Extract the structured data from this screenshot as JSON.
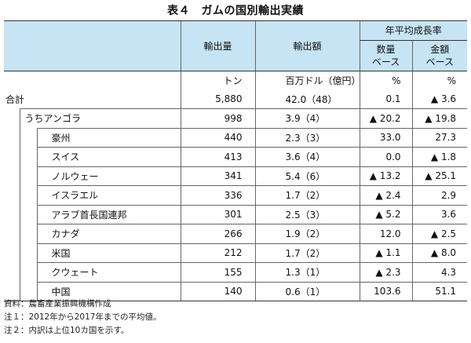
{
  "title": "表４　ガムの国別輸出実績",
  "header": {
    "volume_label": "輸出量",
    "value_label": "輸出額",
    "growth_group_label": "年平均成長率",
    "growth_qty_label": "数量ベース",
    "growth_qty_line1": "数量",
    "growth_qty_line2": "ベース",
    "growth_amt_label": "金額ベース",
    "growth_amt_line1": "金額",
    "growth_amt_line2": "ベース"
  },
  "units": {
    "volume": "トン",
    "value": "百万ドル（億円）",
    "growth_qty": "%",
    "growth_amt": "%"
  },
  "rows": [
    {
      "name": "合計",
      "volume": "5,880",
      "value": "42.0（48）",
      "growth_qty": "0.1",
      "growth_amt": "▲ 3.6"
    },
    {
      "name": "うちアンゴラ",
      "volume": "998",
      "value": "3.9（4）",
      "growth_qty": "▲ 20.2",
      "growth_amt": "▲ 19.8"
    },
    {
      "name": "豪州",
      "volume": "440",
      "value": "2.3（3）",
      "growth_qty": "33.0",
      "growth_amt": "27.3"
    },
    {
      "name": "スイス",
      "volume": "413",
      "value": "3.6（4）",
      "growth_qty": "0.0",
      "growth_amt": "▲ 1.8"
    },
    {
      "name": "ノルウェー",
      "volume": "341",
      "value": "5.4（6）",
      "growth_qty": "▲ 13.2",
      "growth_amt": "▲ 25.1"
    },
    {
      "name": "イスラエル",
      "volume": "336",
      "value": "1.7（2）",
      "growth_qty": "▲ 2.4",
      "growth_amt": "2.9"
    },
    {
      "name": "アラブ首長国連邦",
      "volume": "301",
      "value": "2.5（3）",
      "growth_qty": "▲ 5.2",
      "growth_amt": "3.6"
    },
    {
      "name": "カナダ",
      "volume": "266",
      "value": "1.9（2）",
      "growth_qty": "12.0",
      "growth_amt": "▲ 2.5"
    },
    {
      "name": "米国",
      "volume": "212",
      "value": "1.7（2）",
      "growth_qty": "▲ 1.1",
      "growth_amt": "▲ 8.0"
    },
    {
      "name": "クウェート",
      "volume": "155",
      "value": "1.3（1）",
      "growth_qty": "▲ 2.3",
      "growth_amt": "4.3"
    },
    {
      "name": "中国",
      "volume": "140",
      "value": "0.6（1）",
      "growth_qty": "103.6",
      "growth_amt": "51.1"
    }
  ],
  "notes": [
    "資料：農畜産業振興機構作成",
    "注１：2012年から2017年までの平均値。",
    "注２：内訳は上位10カ国を示す。"
  ],
  "colors": {
    "header_bg": "#c6e4f3"
  }
}
